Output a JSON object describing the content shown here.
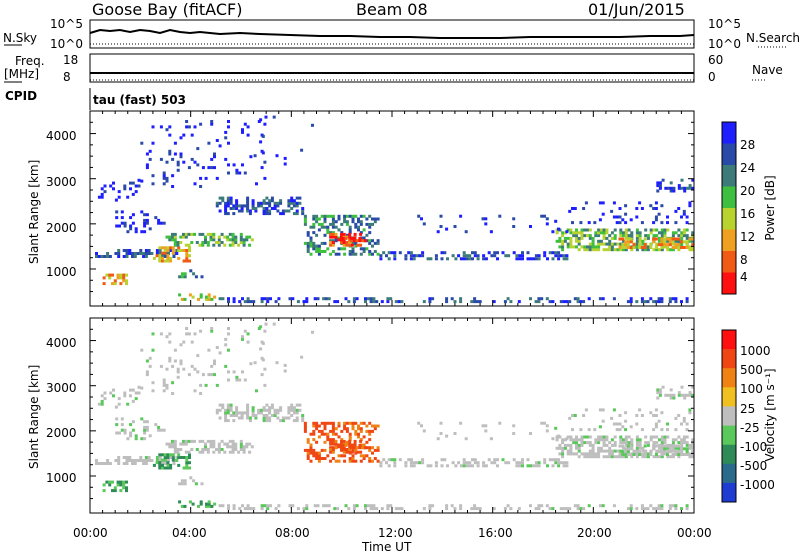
{
  "header": {
    "station": "Goose Bay (fitACF)",
    "beam": "Beam 08",
    "date": "01/Jun/2015"
  },
  "sky_panel": {
    "left_label": "N.Sky",
    "left_ticks": [
      "10^5",
      "10^0"
    ],
    "right_ticks": [
      "10^5",
      "10^0"
    ],
    "right_label": "N.Search"
  },
  "freq_panel": {
    "left_label_line1": "Freq.",
    "left_label_line2": "[MHz]",
    "left_ticks": [
      "18",
      "8"
    ],
    "right_ticks": [
      "60",
      "0"
    ],
    "right_label": "Nave"
  },
  "cpid": {
    "label": "CPID",
    "value": "tau (fast) 503"
  },
  "chart_data": [
    {
      "type": "heatmap",
      "name": "power",
      "ylabel": "Slant Range [km]",
      "yticks": [
        "4000",
        "3000",
        "2000",
        "1000"
      ],
      "ylim": [
        180,
        4500
      ],
      "colorbar_label": "Power [dB]",
      "colorbar_ticks": [
        "28",
        "24",
        "20",
        "16",
        "12",
        "8",
        "4"
      ],
      "colorbar_colors": [
        "#1e1eff",
        "#2a4aa8",
        "#3d7a7a",
        "#3fbf3f",
        "#b8d230",
        "#f0a020",
        "#f05a14",
        "#ff1010"
      ]
    },
    {
      "type": "heatmap",
      "name": "velocity",
      "ylabel": "Slant Range [km]",
      "yticks": [
        "4000",
        "3000",
        "2000",
        "1000"
      ],
      "ylim": [
        180,
        4500
      ],
      "xlabel": "Time UT",
      "xticks": [
        "00:00",
        "04:00",
        "08:00",
        "12:00",
        "16:00",
        "20:00",
        "00:00"
      ],
      "colorbar_label": "Velocity [m s⁻¹]",
      "colorbar_ticks": [
        "1000",
        "500",
        "100",
        "25",
        "-25",
        "-100",
        "-500",
        "-1000"
      ],
      "colorbar_colors": [
        "#1e3cd2",
        "#2a6a8a",
        "#2e8b57",
        "#5ac85a",
        "#bebebe",
        "#f0c020",
        "#f08214",
        "#f04614",
        "#ff1010"
      ]
    }
  ]
}
